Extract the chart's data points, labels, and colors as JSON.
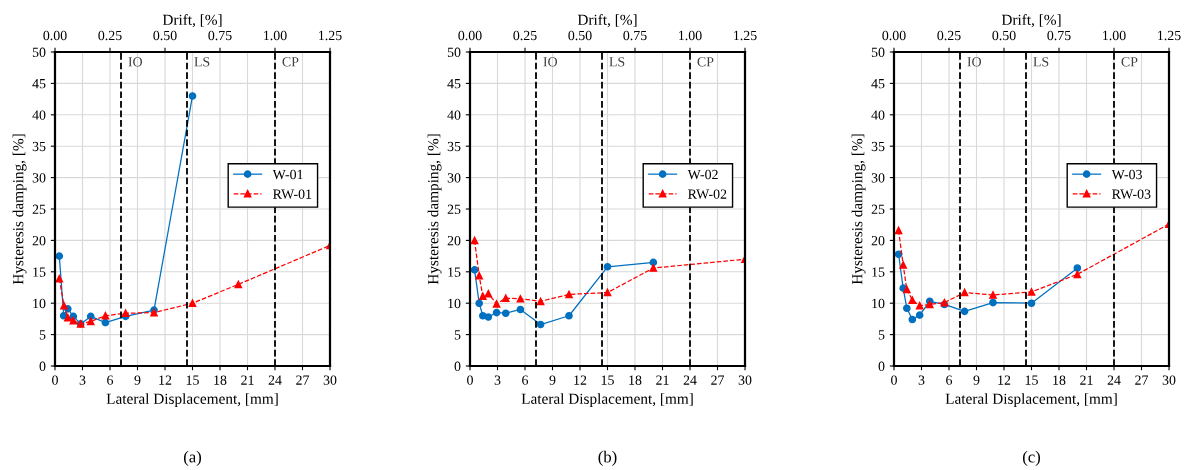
{
  "chart_data": [
    {
      "type": "line",
      "xlabel": "Lateral Displacement, [mm]",
      "ylabel": "Hysteresis damping, [%]",
      "x2label": "Drift, [%]",
      "xlim": [
        0,
        30
      ],
      "xticks": [
        0,
        3,
        6,
        9,
        12,
        15,
        18,
        21,
        24,
        27,
        30
      ],
      "ylim": [
        0,
        50
      ],
      "yticks": [
        0,
        5,
        10,
        15,
        20,
        25,
        30,
        35,
        40,
        45,
        50
      ],
      "x2lim": [
        0,
        1.25
      ],
      "x2ticks": [
        {
          "value": 0,
          "label": "0.00"
        },
        {
          "value": 0.25,
          "label": "0.25"
        },
        {
          "value": 0.5,
          "label": "0.50"
        },
        {
          "value": 0.75,
          "label": "0.75"
        },
        {
          "value": 1,
          "label": "1.00"
        },
        {
          "value": 1.25,
          "label": "1.25"
        }
      ],
      "grid": true,
      "legend": "right",
      "series": [
        {
          "name": "W-01",
          "color": "#0070c0",
          "marker": "circle",
          "line_style": "solid",
          "x": [
            0.47,
            0.95,
            1.4,
            2.0,
            2.8,
            3.9,
            5.5,
            7.7,
            10.8,
            15.0
          ],
          "values": [
            17.5,
            8.0,
            9.1,
            7.9,
            6.7,
            7.9,
            6.9,
            7.9,
            8.9,
            43.0
          ]
        },
        {
          "name": "RW-01",
          "color": "#ff0000",
          "marker": "triangle",
          "line_style": "dashed",
          "x": [
            0.47,
            0.98,
            1.4,
            2.0,
            2.8,
            3.9,
            5.5,
            7.7,
            10.8,
            15.0,
            20.0,
            30.0
          ],
          "values": [
            13.9,
            9.6,
            7.7,
            7.2,
            6.7,
            7.1,
            8.0,
            8.4,
            8.5,
            10.0,
            13.0,
            19.2
          ]
        }
      ],
      "ref_lines": [
        {
          "axis": "x",
          "value": 7.2,
          "label": "IO",
          "color": "#000000",
          "line_style": "dashed"
        },
        {
          "axis": "x",
          "value": 14.4,
          "label": "LS",
          "color": "#000000",
          "line_style": "dashed"
        },
        {
          "axis": "x",
          "value": 24.0,
          "label": "CP",
          "color": "#000000",
          "line_style": "dashed"
        }
      ],
      "annotations": [
        "(a)"
      ]
    },
    {
      "type": "line",
      "xlabel": "Lateral Displacement, [mm]",
      "ylabel": "Hysteresis damping, [%]",
      "x2label": "Drift, [%]",
      "xlim": [
        0,
        30
      ],
      "xticks": [
        0,
        3,
        6,
        9,
        12,
        15,
        18,
        21,
        24,
        27,
        30
      ],
      "ylim": [
        0,
        50
      ],
      "yticks": [
        0,
        5,
        10,
        15,
        20,
        25,
        30,
        35,
        40,
        45,
        50
      ],
      "x2lim": [
        0,
        1.25
      ],
      "x2ticks": [
        {
          "value": 0,
          "label": "0.00"
        },
        {
          "value": 0.25,
          "label": "0.25"
        },
        {
          "value": 0.5,
          "label": "0.50"
        },
        {
          "value": 0.75,
          "label": "0.75"
        },
        {
          "value": 1,
          "label": "1.00"
        },
        {
          "value": 1.25,
          "label": "1.25"
        }
      ],
      "grid": true,
      "legend": "right",
      "series": [
        {
          "name": "W-02",
          "color": "#0070c0",
          "marker": "circle",
          "line_style": "solid",
          "x": [
            0.5,
            1.0,
            1.4,
            2.0,
            2.9,
            3.9,
            5.5,
            7.7,
            10.8,
            15.0,
            20.0
          ],
          "values": [
            15.3,
            10.0,
            8.0,
            7.8,
            8.5,
            8.4,
            9.0,
            6.6,
            8.0,
            15.8,
            16.5
          ]
        },
        {
          "name": "RW-02",
          "color": "#ff0000",
          "marker": "triangle",
          "line_style": "dashed",
          "x": [
            0.5,
            1.0,
            1.4,
            2.0,
            2.9,
            3.9,
            5.5,
            7.7,
            10.8,
            15.0,
            20.0,
            30.0
          ],
          "values": [
            20.0,
            14.4,
            11.1,
            11.5,
            9.9,
            10.8,
            10.7,
            10.3,
            11.4,
            11.7,
            15.6,
            17.0
          ]
        }
      ],
      "ref_lines": [
        {
          "axis": "x",
          "value": 7.2,
          "label": "IO",
          "color": "#000000",
          "line_style": "dashed"
        },
        {
          "axis": "x",
          "value": 14.4,
          "label": "LS",
          "color": "#000000",
          "line_style": "dashed"
        },
        {
          "axis": "x",
          "value": 24.0,
          "label": "CP",
          "color": "#000000",
          "line_style": "dashed"
        }
      ],
      "annotations": [
        "(b)"
      ]
    },
    {
      "type": "line",
      "xlabel": "Lateral Displacement, [mm]",
      "ylabel": "Hysteresis damping, [%]",
      "x2label": "Drift, [%]",
      "xlim": [
        0,
        30
      ],
      "xticks": [
        0,
        3,
        6,
        9,
        12,
        15,
        18,
        21,
        24,
        27,
        30
      ],
      "ylim": [
        0,
        50
      ],
      "yticks": [
        0,
        5,
        10,
        15,
        20,
        25,
        30,
        35,
        40,
        45,
        50
      ],
      "x2lim": [
        0,
        1.25
      ],
      "x2ticks": [
        {
          "value": 0,
          "label": "0.00"
        },
        {
          "value": 0.25,
          "label": "0.25"
        },
        {
          "value": 0.5,
          "label": "0.50"
        },
        {
          "value": 0.75,
          "label": "0.75"
        },
        {
          "value": 1,
          "label": "1.00"
        },
        {
          "value": 1.25,
          "label": "1.25"
        }
      ],
      "grid": true,
      "legend": "right",
      "series": [
        {
          "name": "W-03",
          "color": "#0070c0",
          "marker": "circle",
          "line_style": "solid",
          "x": [
            0.5,
            1.0,
            1.4,
            2.0,
            2.8,
            3.9,
            5.5,
            7.7,
            10.8,
            15.0,
            20.0
          ],
          "values": [
            17.8,
            12.4,
            9.2,
            7.4,
            8.1,
            10.3,
            9.8,
            8.7,
            10.1,
            10.0,
            15.6
          ]
        },
        {
          "name": "RW-03",
          "color": "#ff0000",
          "marker": "triangle",
          "line_style": "dashed",
          "x": [
            0.5,
            1.0,
            1.4,
            2.0,
            2.8,
            3.9,
            5.5,
            7.7,
            10.8,
            15.0,
            20.0,
            30.0
          ],
          "values": [
            21.6,
            16.1,
            12.2,
            10.5,
            9.6,
            9.8,
            10.1,
            11.7,
            11.3,
            11.8,
            14.6,
            22.6
          ]
        }
      ],
      "ref_lines": [
        {
          "axis": "x",
          "value": 7.2,
          "label": "IO",
          "color": "#000000",
          "line_style": "dashed"
        },
        {
          "axis": "x",
          "value": 14.4,
          "label": "LS",
          "color": "#000000",
          "line_style": "dashed"
        },
        {
          "axis": "x",
          "value": 24.0,
          "label": "CP",
          "color": "#000000",
          "line_style": "dashed"
        }
      ],
      "annotations": [
        "(c)"
      ]
    }
  ]
}
